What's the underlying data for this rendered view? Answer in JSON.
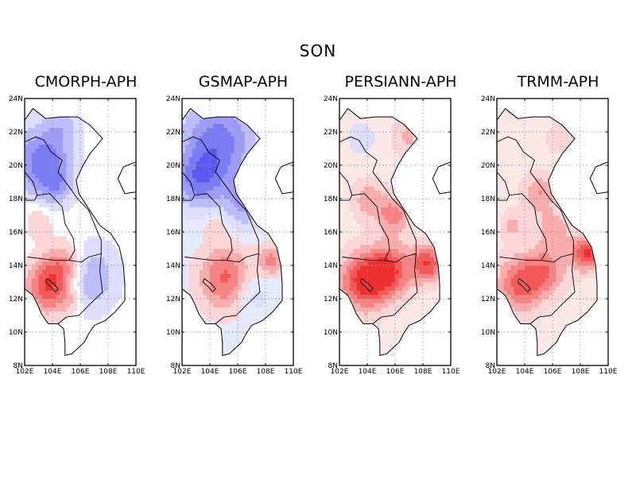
{
  "figure_title": "SON",
  "panels": [
    {
      "title": "CMORPH-APH",
      "scheme": "cmorph"
    },
    {
      "title": "GSMAP-APH",
      "scheme": "gsmap"
    },
    {
      "title": "PERSIANN-APH",
      "scheme": "persiann"
    },
    {
      "title": "TRMM-APH",
      "scheme": "trmm"
    }
  ],
  "map_extent": {
    "lon": [
      102,
      110
    ],
    "lat": [
      8,
      24
    ]
  },
  "lon_ticks": [
    "102E",
    "104E",
    "106E",
    "108E",
    "110E"
  ],
  "lat_ticks": [
    "8N",
    "10N",
    "12N",
    "14N",
    "16N",
    "18N",
    "20N",
    "22N",
    "24N"
  ],
  "colors": {
    "negative": "#5a5af0",
    "positive": "#f03030",
    "neutral": "#ffffff",
    "grid": "#999999"
  }
}
